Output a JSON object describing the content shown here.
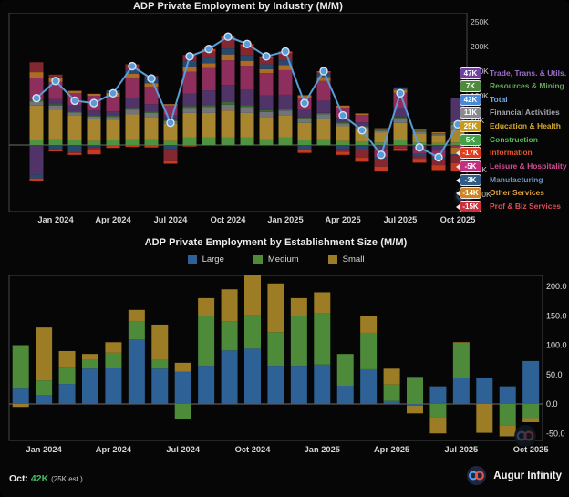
{
  "footer": {
    "latest_label": "Oct:",
    "latest_value": "42K",
    "latest_note": "(25K est.)",
    "brand": "Augur Infinity"
  },
  "chart_data": [
    {
      "type": "bar",
      "subtype": "stacked-bar-with-total-line",
      "title": "ADP Private Employment by Industry (M/M)",
      "months": [
        "Dec 2023",
        "Jan 2024",
        "Feb 2024",
        "Mar 2024",
        "Apr 2024",
        "May 2024",
        "Jun 2024",
        "Jul 2024",
        "Aug 2024",
        "Sep 2024",
        "Oct 2024",
        "Nov 2024",
        "Dec 2024",
        "Jan 2025",
        "Feb 2025",
        "Mar 2025",
        "Apr 2025",
        "May 2025",
        "Jun 2025",
        "Jul 2025",
        "Aug 2025",
        "Sep 2025",
        "Oct 2025"
      ],
      "x_tick_labels": [
        "Jan 2024",
        "Apr 2024",
        "Jul 2024",
        "Oct 2024",
        "Jan 2025",
        "Apr 2025",
        "Jul 2025",
        "Oct 2025"
      ],
      "y_tick_labels": [
        "250K",
        "200K",
        "150K",
        "100K",
        "50K",
        "0K",
        "-50K",
        "-100K"
      ],
      "y_tick_values": [
        250,
        200,
        150,
        100,
        50,
        0,
        -50,
        -100
      ],
      "ylim": [
        -135,
        270
      ],
      "unit": "thousands (K)",
      "total_line": {
        "name": "Total",
        "color": "#5b9bd5",
        "values": [
          95,
          130,
          90,
          85,
          105,
          160,
          135,
          45,
          180,
          195,
          220,
          205,
          180,
          190,
          85,
          150,
          60,
          30,
          -20,
          105,
          -5,
          -25,
          42
        ]
      },
      "series": [
        {
          "name": "Construction",
          "color": "#4f9240",
          "values": [
            10,
            12,
            10,
            8,
            10,
            12,
            12,
            8,
            15,
            15,
            15,
            15,
            12,
            15,
            10,
            12,
            8,
            6,
            5,
            10,
            5,
            4,
            5
          ]
        },
        {
          "name": "Education & Health",
          "color": "#a8862f",
          "values": [
            70,
            60,
            50,
            45,
            40,
            50,
            45,
            35,
            50,
            50,
            55,
            50,
            45,
            45,
            35,
            40,
            30,
            25,
            20,
            35,
            18,
            15,
            25
          ]
        },
        {
          "name": "Financial Activities",
          "color": "#73747a",
          "values": [
            8,
            8,
            6,
            5,
            7,
            10,
            8,
            5,
            10,
            12,
            12,
            12,
            10,
            10,
            8,
            10,
            6,
            5,
            4,
            8,
            4,
            3,
            11
          ]
        },
        {
          "name": "Resources & Mining",
          "color": "#3c6a32",
          "values": [
            3,
            3,
            2,
            2,
            3,
            3,
            3,
            2,
            4,
            4,
            5,
            4,
            4,
            4,
            3,
            3,
            2,
            2,
            2,
            3,
            2,
            2,
            7
          ]
        },
        {
          "name": "Trade, Trans. & Utils.",
          "color": "#503468",
          "values": [
            -60,
            10,
            12,
            10,
            8,
            20,
            15,
            10,
            25,
            30,
            35,
            32,
            30,
            28,
            15,
            25,
            10,
            8,
            -10,
            20,
            -8,
            -12,
            47
          ]
        },
        {
          "name": "Leisure & Hospitality",
          "color": "#8e2e5d",
          "values": [
            45,
            35,
            25,
            30,
            30,
            40,
            35,
            20,
            45,
            45,
            50,
            48,
            45,
            50,
            25,
            40,
            20,
            15,
            -15,
            30,
            -10,
            -12,
            -5
          ]
        },
        {
          "name": "Other Services",
          "color": "#ad6b24",
          "values": [
            12,
            8,
            5,
            4,
            8,
            10,
            7,
            3,
            10,
            10,
            12,
            10,
            8,
            10,
            5,
            8,
            4,
            3,
            3,
            6,
            2,
            2,
            -14
          ]
        },
        {
          "name": "Manufacturing",
          "color": "#28486e",
          "values": [
            -8,
            -10,
            -15,
            -5,
            5,
            8,
            10,
            -8,
            12,
            10,
            12,
            12,
            10,
            10,
            -10,
            8,
            -8,
            -10,
            -6,
            5,
            -5,
            -4,
            -3
          ]
        },
        {
          "name": "Prof & Biz Services",
          "color": "#832730",
          "values": [
            20,
            7,
            -1,
            -6,
            0,
            11,
            5,
            -25,
            12,
            14,
            19,
            18,
            12,
            14,
            -1,
            1,
            -6,
            -16,
            -13,
            -7,
            -5,
            -13,
            -15
          ]
        },
        {
          "name": "Information",
          "color": "#c53a20",
          "values": [
            -5,
            -3,
            -4,
            -8,
            -6,
            -4,
            -5,
            -5,
            -3,
            5,
            5,
            4,
            4,
            4,
            -5,
            3,
            -6,
            -8,
            -10,
            -5,
            -8,
            -10,
            -17
          ]
        }
      ],
      "callouts": [
        {
          "value": "47K",
          "bg": "#7040a0",
          "label": "Trade, Trans. & Utils.",
          "label_color": "#9b6ec9"
        },
        {
          "value": "7K",
          "bg": "#4f8a3c",
          "label": "Resources & Mining",
          "label_color": "#63a857"
        },
        {
          "value": "42K",
          "bg": "#4a8ad4",
          "label": "Total",
          "label_color": "#6fa8e8"
        },
        {
          "value": "11K",
          "bg": "#88888e",
          "label": "Financial Activities",
          "label_color": "#a5a5ac"
        },
        {
          "value": "25K",
          "bg": "#c79a1d",
          "label": "Education & Health",
          "label_color": "#d8ab28"
        },
        {
          "value": "5K",
          "bg": "#43a047",
          "label": "Construction",
          "label_color": "#52bc5c"
        },
        {
          "value": "-17K",
          "bg": "#df3b1c",
          "label": "Information",
          "label_color": "#e8542f"
        },
        {
          "value": "-5K",
          "bg": "#c42e7e",
          "label": "Leisure & Hospitality",
          "label_color": "#d64b95"
        },
        {
          "value": "-3K",
          "bg": "#2f5b86",
          "label": "Manufacturing",
          "label_color": "#6b95c0"
        },
        {
          "value": "-14K",
          "bg": "#cd8526",
          "label": "Other Services",
          "label_color": "#dca03c"
        },
        {
          "value": "-15K",
          "bg": "#ca2f3d",
          "label": "Prof & Biz Services",
          "label_color": "#dd4c57"
        }
      ]
    },
    {
      "type": "bar",
      "subtype": "stacked-bar",
      "title": "ADP Private Employment by Establishment Size (M/M)",
      "months": [
        "Dec 2023",
        "Jan 2024",
        "Feb 2024",
        "Mar 2024",
        "Apr 2024",
        "May 2024",
        "Jun 2024",
        "Jul 2024",
        "Aug 2024",
        "Sep 2024",
        "Oct 2024",
        "Nov 2024",
        "Dec 2024",
        "Jan 2025",
        "Feb 2025",
        "Mar 2025",
        "Apr 2025",
        "May 2025",
        "Jun 2025",
        "Jul 2025",
        "Aug 2025",
        "Sep 2025",
        "Oct 2025"
      ],
      "x_tick_labels": [
        "Jan 2024",
        "Apr 2024",
        "Jul 2024",
        "Oct 2024",
        "Jan 2025",
        "Apr 2025",
        "Jul 2025",
        "Oct 2025"
      ],
      "y_tick_labels": [
        "200.0",
        "150.0",
        "100.0",
        "50.0",
        "0.0",
        "-50.0"
      ],
      "y_tick_values": [
        200,
        150,
        100,
        50,
        0,
        -50
      ],
      "ylim": [
        -75,
        210
      ],
      "unit": "thousands (K)",
      "legend": [
        "Large",
        "Medium",
        "Small"
      ],
      "series": [
        {
          "name": "Large",
          "color": "#2e6296",
          "values": [
            26,
            15,
            34,
            60,
            62,
            110,
            60,
            55,
            65,
            91,
            94,
            65,
            65,
            67,
            31,
            59,
            5,
            -3,
            30,
            44,
            44,
            30,
            73
          ]
        },
        {
          "name": "Medium",
          "color": "#4d8a3a",
          "values": [
            74,
            25,
            29,
            15,
            25,
            30,
            15,
            -25,
            85,
            50,
            57,
            57,
            84,
            87,
            54,
            62,
            28,
            46,
            -22,
            59,
            0,
            -36,
            -24
          ]
        },
        {
          "name": "Small",
          "color": "#9c7d26",
          "values": [
            -5,
            90,
            27,
            10,
            18,
            20,
            60,
            15,
            30,
            54,
            69,
            83,
            31,
            36,
            0,
            29,
            27,
            -13,
            -28,
            2,
            -49,
            -19,
            -7
          ]
        }
      ]
    }
  ]
}
